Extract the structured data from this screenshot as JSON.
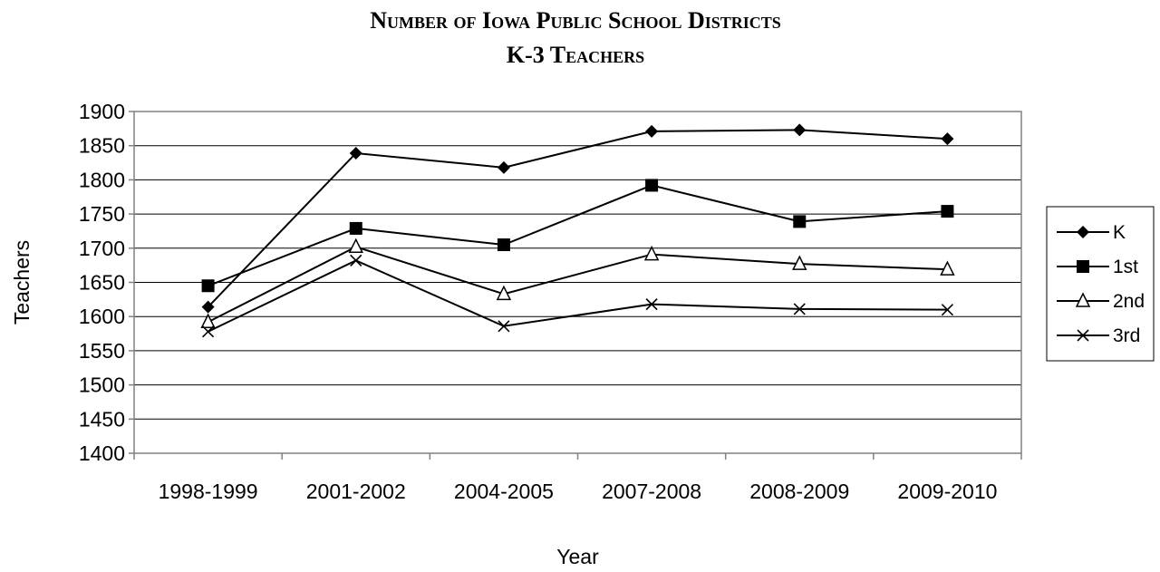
{
  "chart_data": {
    "type": "line",
    "title": "Number of Iowa Public School Districts",
    "subtitle": "K-3 Teachers",
    "xlabel": "Year",
    "ylabel": "Teachers",
    "categories": [
      "1998-1999",
      "2001-2002",
      "2004-2005",
      "2007-2008",
      "2008-2009",
      "2009-2010"
    ],
    "ylim": [
      1400,
      1900
    ],
    "yticks": [
      1400,
      1450,
      1500,
      1550,
      1600,
      1650,
      1700,
      1750,
      1800,
      1850,
      1900
    ],
    "grid": "horizontal",
    "legend_position": "right",
    "series": [
      {
        "name": "K",
        "marker": "diamond",
        "values": [
          1614,
          1839,
          1818,
          1871,
          1873,
          1860
        ]
      },
      {
        "name": "1st",
        "marker": "square",
        "values": [
          1645,
          1729,
          1705,
          1792,
          1739,
          1754
        ]
      },
      {
        "name": "2nd",
        "marker": "triangle",
        "values": [
          1592,
          1702,
          1633,
          1691,
          1677,
          1669
        ]
      },
      {
        "name": "3rd",
        "marker": "x",
        "values": [
          1578,
          1682,
          1586,
          1618,
          1611,
          1610
        ]
      }
    ]
  }
}
